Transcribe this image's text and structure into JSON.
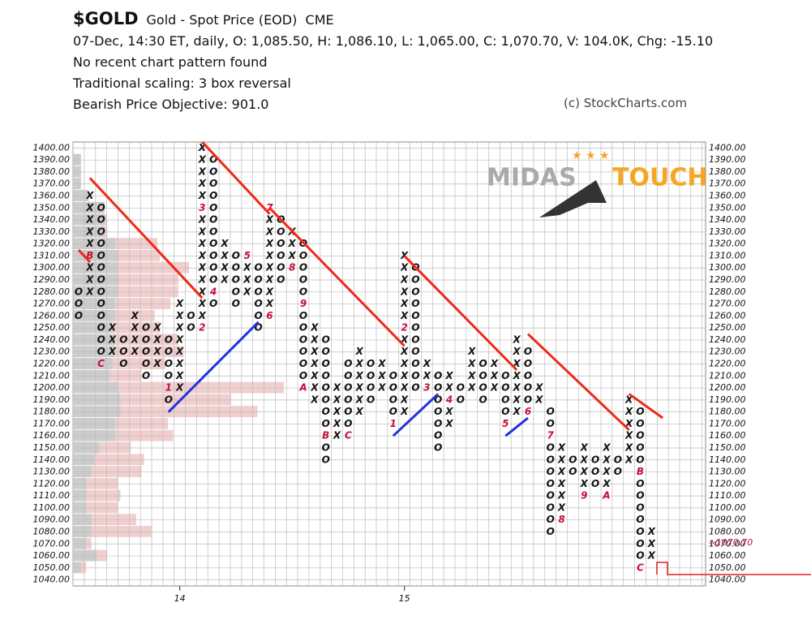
{
  "header": {
    "symbol": "$GOLD",
    "name": "Gold - Spot Price (EOD)",
    "exchange": "CME",
    "info": "07-Dec, 14:30 ET, daily, O: 1,085.50, H: 1,086.10, L: 1,065.00, C: 1,070.70, V: 104.0K, Chg: -15.10",
    "pattern": "No recent chart pattern found",
    "scaling": "Traditional scaling: 3 box reversal",
    "objective": "Bearish Price Objective: 901.0",
    "copyright": "(c) StockCharts.com",
    "watermark": [
      "MIDAS",
      "TOUCH"
    ]
  },
  "chart_data": {
    "type": "pointfigure",
    "box_size": 10,
    "ylim": [
      1035,
      1405
    ],
    "yticks": [
      {
        "value": 1040,
        "label": "1040.00"
      },
      {
        "value": 1050,
        "label": "1050.00"
      },
      {
        "value": 1060,
        "label": "1060.00"
      },
      {
        "value": 1070,
        "label": "1070.00"
      },
      {
        "value": 1080,
        "label": "1080.00"
      },
      {
        "value": 1090,
        "label": "1090.00"
      },
      {
        "value": 1100,
        "label": "1100.00"
      },
      {
        "value": 1110,
        "label": "1110.00"
      },
      {
        "value": 1120,
        "label": "1120.00"
      },
      {
        "value": 1130,
        "label": "1130.00"
      },
      {
        "value": 1140,
        "label": "1140.00"
      },
      {
        "value": 1150,
        "label": "1150.00"
      },
      {
        "value": 1160,
        "label": "1160.00"
      },
      {
        "value": 1170,
        "label": "1170.00"
      },
      {
        "value": 1180,
        "label": "1180.00"
      },
      {
        "value": 1190,
        "label": "1190.00"
      },
      {
        "value": 1200,
        "label": "1200.00"
      },
      {
        "value": 1210,
        "label": "1210.00"
      },
      {
        "value": 1220,
        "label": "1220.00"
      },
      {
        "value": 1230,
        "label": "1230.00"
      },
      {
        "value": 1240,
        "label": "1240.00"
      },
      {
        "value": 1250,
        "label": "1250.00"
      },
      {
        "value": 1260,
        "label": "1260.00"
      },
      {
        "value": 1270,
        "label": "1270.00"
      },
      {
        "value": 1280,
        "label": "1280.00"
      },
      {
        "value": 1290,
        "label": "1290.00"
      },
      {
        "value": 1300,
        "label": "1300.00"
      },
      {
        "value": 1310,
        "label": "1310.00"
      },
      {
        "value": 1320,
        "label": "1320.00"
      },
      {
        "value": 1330,
        "label": "1330.00"
      },
      {
        "value": 1340,
        "label": "1340.00"
      },
      {
        "value": 1350,
        "label": "1350.00"
      },
      {
        "value": 1360,
        "label": "1360.00"
      },
      {
        "value": 1370,
        "label": "1370.00"
      },
      {
        "value": 1380,
        "label": "1380.00"
      },
      {
        "value": 1390,
        "label": "1390.00"
      },
      {
        "value": 1400,
        "label": "1400.00"
      }
    ],
    "xticks": [
      {
        "column": 9,
        "label": "14"
      },
      {
        "column": 29,
        "label": "15"
      }
    ],
    "columns": [
      {
        "type": "O",
        "low": 1260,
        "high": 1280
      },
      {
        "type": "X",
        "low": 1280,
        "high": 1360
      },
      {
        "type": "O",
        "low": 1220,
        "high": 1350
      },
      {
        "type": "X",
        "low": 1230,
        "high": 1250
      },
      {
        "type": "O",
        "low": 1220,
        "high": 1240
      },
      {
        "type": "X",
        "low": 1230,
        "high": 1260
      },
      {
        "type": "O",
        "low": 1210,
        "high": 1250
      },
      {
        "type": "X",
        "low": 1220,
        "high": 1250
      },
      {
        "type": "O",
        "low": 1190,
        "high": 1240
      },
      {
        "type": "X",
        "low": 1200,
        "high": 1270
      },
      {
        "type": "O",
        "low": 1250,
        "high": 1260
      },
      {
        "type": "X",
        "low": 1250,
        "high": 1400
      },
      {
        "type": "O",
        "low": 1270,
        "high": 1390
      },
      {
        "type": "X",
        "low": 1290,
        "high": 1320
      },
      {
        "type": "O",
        "low": 1270,
        "high": 1310
      },
      {
        "type": "X",
        "low": 1280,
        "high": 1310
      },
      {
        "type": "O",
        "low": 1250,
        "high": 1300
      },
      {
        "type": "X",
        "low": 1260,
        "high": 1350
      },
      {
        "type": "O",
        "low": 1290,
        "high": 1340
      },
      {
        "type": "X",
        "low": 1300,
        "high": 1330
      },
      {
        "type": "O",
        "low": 1200,
        "high": 1320
      },
      {
        "type": "X",
        "low": 1190,
        "high": 1250
      },
      {
        "type": "O",
        "low": 1140,
        "high": 1240
      },
      {
        "type": "X",
        "low": 1160,
        "high": 1200
      },
      {
        "type": "O",
        "low": 1170,
        "high": 1220
      },
      {
        "type": "X",
        "low": 1180,
        "high": 1230
      },
      {
        "type": "O",
        "low": 1190,
        "high": 1220
      },
      {
        "type": "X",
        "low": 1200,
        "high": 1220
      },
      {
        "type": "O",
        "low": 1170,
        "high": 1210
      },
      {
        "type": "X",
        "low": 1180,
        "high": 1310
      },
      {
        "type": "O",
        "low": 1200,
        "high": 1300
      },
      {
        "type": "X",
        "low": 1200,
        "high": 1220
      },
      {
        "type": "O",
        "low": 1150,
        "high": 1210
      },
      {
        "type": "X",
        "low": 1170,
        "high": 1210
      },
      {
        "type": "O",
        "low": 1190,
        "high": 1200
      },
      {
        "type": "X",
        "low": 1200,
        "high": 1230
      },
      {
        "type": "O",
        "low": 1190,
        "high": 1220
      },
      {
        "type": "X",
        "low": 1200,
        "high": 1220
      },
      {
        "type": "O",
        "low": 1170,
        "high": 1210
      },
      {
        "type": "X",
        "low": 1180,
        "high": 1240
      },
      {
        "type": "O",
        "low": 1180,
        "high": 1230
      },
      {
        "type": "X",
        "low": 1190,
        "high": 1200
      },
      {
        "type": "O",
        "low": 1080,
        "high": 1180
      },
      {
        "type": "X",
        "low": 1090,
        "high": 1150
      },
      {
        "type": "O",
        "low": 1130,
        "high": 1140
      },
      {
        "type": "X",
        "low": 1110,
        "high": 1150
      },
      {
        "type": "O",
        "low": 1120,
        "high": 1140
      },
      {
        "type": "X",
        "low": 1110,
        "high": 1150
      },
      {
        "type": "O",
        "low": 1130,
        "high": 1140
      },
      {
        "type": "X",
        "low": 1140,
        "high": 1190
      },
      {
        "type": "O",
        "low": 1050,
        "high": 1180
      },
      {
        "type": "X",
        "low": 1060,
        "high": 1080
      }
    ],
    "markers": [
      {
        "column": 1,
        "value": 1310,
        "label": "B"
      },
      {
        "column": 2,
        "value": 1220,
        "label": "C"
      },
      {
        "column": 8,
        "value": 1200,
        "label": "1"
      },
      {
        "column": 11,
        "value": 1250,
        "label": "2"
      },
      {
        "column": 11,
        "value": 1350,
        "label": "3"
      },
      {
        "column": 12,
        "value": 1280,
        "label": "4"
      },
      {
        "column": 15,
        "value": 1310,
        "label": "5"
      },
      {
        "column": 17,
        "value": 1260,
        "label": "6"
      },
      {
        "column": 17,
        "value": 1350,
        "label": "7"
      },
      {
        "column": 19,
        "value": 1300,
        "label": "8"
      },
      {
        "column": 20,
        "value": 1270,
        "label": "9"
      },
      {
        "column": 20,
        "value": 1200,
        "label": "A"
      },
      {
        "column": 22,
        "value": 1160,
        "label": "B"
      },
      {
        "column": 24,
        "value": 1160,
        "label": "C"
      },
      {
        "column": 28,
        "value": 1170,
        "label": "1"
      },
      {
        "column": 29,
        "value": 1250,
        "label": "2"
      },
      {
        "column": 31,
        "value": 1200,
        "label": "3"
      },
      {
        "column": 33,
        "value": 1190,
        "label": "4"
      },
      {
        "column": 38,
        "value": 1170,
        "label": "5"
      },
      {
        "column": 40,
        "value": 1180,
        "label": "6"
      },
      {
        "column": 42,
        "value": 1160,
        "label": "7"
      },
      {
        "column": 43,
        "value": 1090,
        "label": "8"
      },
      {
        "column": 45,
        "value": 1110,
        "label": "9"
      },
      {
        "column": 47,
        "value": 1110,
        "label": "A"
      },
      {
        "column": 50,
        "value": 1130,
        "label": "B"
      },
      {
        "column": 50,
        "value": 1050,
        "label": "C"
      }
    ],
    "trendlines": [
      {
        "color": "#ee2a1a",
        "from": [
          1,
          1375
        ],
        "to": [
          11,
          1275
        ]
      },
      {
        "color": "#ee2a1a",
        "from": [
          11,
          1405
        ],
        "to": [
          17,
          1345
        ]
      },
      {
        "color": "#ee2a1a",
        "from": [
          17,
          1350
        ],
        "to": [
          29,
          1235
        ]
      },
      {
        "color": "#ee2a1a",
        "from": [
          29,
          1310
        ],
        "to": [
          39,
          1215
        ]
      },
      {
        "color": "#ee2a1a",
        "from": [
          40,
          1245
        ],
        "to": [
          49,
          1165
        ]
      },
      {
        "color": "#ee2a1a",
        "from": [
          49,
          1195
        ],
        "to": [
          52,
          1175
        ]
      },
      {
        "color": "#ee2a1a",
        "from": [
          0,
          1315
        ],
        "to": [
          1,
          1305
        ]
      },
      {
        "color": "#2233dd",
        "from": [
          8,
          1180
        ],
        "to": [
          16,
          1255
        ]
      },
      {
        "color": "#2233dd",
        "from": [
          28,
          1160
        ],
        "to": [
          32,
          1195
        ]
      },
      {
        "color": "#2233dd",
        "from": [
          38,
          1160
        ],
        "to": [
          40,
          1175
        ]
      }
    ],
    "volume_by_price": {
      "prices": [
        1050,
        1060,
        1070,
        1080,
        1090,
        1100,
        1110,
        1120,
        1130,
        1140,
        1150,
        1160,
        1170,
        1180,
        1190,
        1200,
        1210,
        1220,
        1230,
        1240,
        1250,
        1260,
        1270,
        1280,
        1290,
        1300,
        1310,
        1320,
        1330,
        1340,
        1350,
        1360,
        1370,
        1380,
        1390
      ],
      "total": [
        5,
        13,
        7,
        30,
        24,
        17,
        18,
        17,
        26,
        27,
        22,
        38,
        36,
        70,
        60,
        80,
        26,
        35,
        42,
        40,
        33,
        31,
        37,
        40,
        40,
        44,
        33,
        32,
        13,
        13,
        12,
        6,
        3,
        3,
        3
      ],
      "down": [
        3,
        9,
        5,
        7,
        7,
        5,
        5,
        5,
        7,
        8,
        10,
        16,
        16,
        18,
        18,
        17,
        14,
        15,
        16,
        16,
        15,
        16,
        16,
        17,
        17,
        17,
        17,
        16,
        12,
        12,
        12,
        6,
        3,
        3,
        3
      ]
    },
    "last_price": {
      "value": 1070.7,
      "label": "‹‹1070.70"
    },
    "colors": {
      "up": "#f2cfcf",
      "down": "#cccccc"
    }
  }
}
